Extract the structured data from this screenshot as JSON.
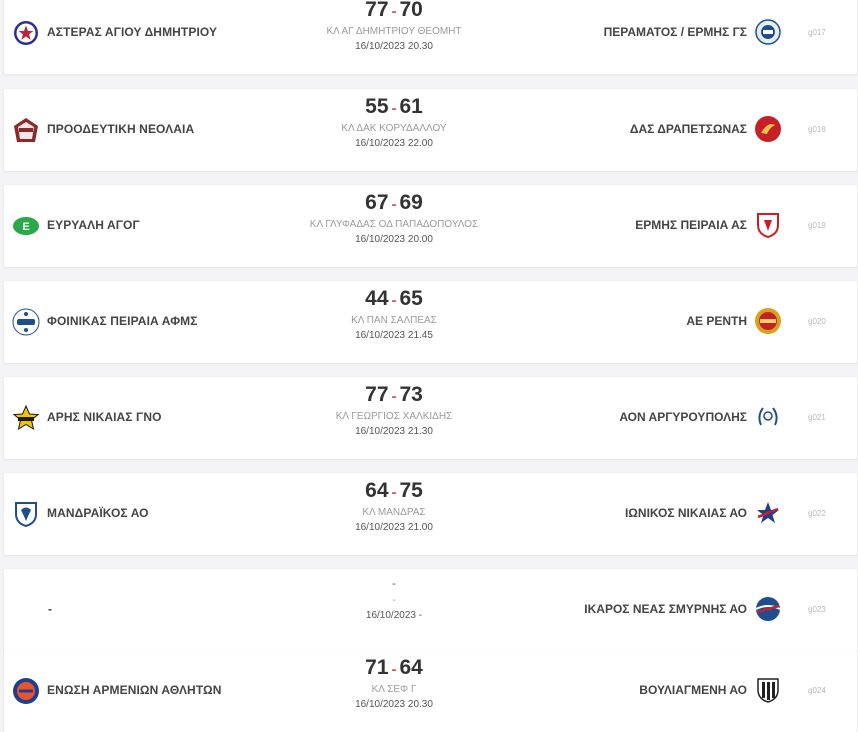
{
  "matches": [
    {
      "home": "ΑΣΤΕΡΑΣ ΑΓΙΟΥ ΔΗΜΗΤΡΙΟΥ",
      "home_score": "77",
      "separator": "-",
      "away_score": "70",
      "venue": "ΚΛ ΑΓ ΔΗΜΗΤΡΙΟΥ ΘΕΟΜΗΤ",
      "datetime": "16/10/2023 20.30",
      "away": "ΠΕΡΑΜΑΤΟΣ / ΕΡΜΗΣ ΓΣ",
      "code": "g017"
    },
    {
      "home": "ΠΡΟΟΔΕΥΤΙΚΗ ΝΕΟΛΑΙΑ",
      "home_score": "55",
      "separator": "-",
      "away_score": "61",
      "venue": "ΚΛ ΔΑΚ ΚΟΡΥΔΑΛΛΟΥ",
      "datetime": "16/10/2023 22.00",
      "away": "ΔΑΣ ΔΡΑΠΕΤΣΩΝΑΣ",
      "code": "g018"
    },
    {
      "home": "ΕΥΡΥΑΛΗ ΑΓΟΓ",
      "home_score": "67",
      "separator": "-",
      "away_score": "69",
      "venue": "ΚΛ ΓΛΥΦΑΔΑΣ ΟΔ ΠΑΠΑΔΟΠΟΥΛΟΣ",
      "datetime": "16/10/2023 20.00",
      "away": "ΕΡΜΗΣ ΠΕΙΡΑΙΑ ΑΣ",
      "code": "g019"
    },
    {
      "home": "ΦΟΙΝΙΚΑΣ ΠΕΙΡΑΙΑ ΑΦΜΣ",
      "home_score": "44",
      "separator": "-",
      "away_score": "65",
      "venue": "ΚΛ ΠΑΝ ΣΑΛΠΕΑΣ",
      "datetime": "16/10/2023 21.45",
      "away": "ΑΕ ΡΕΝΤΗ",
      "code": "g020"
    },
    {
      "home": "ΑΡΗΣ ΝΙΚΑΙΑΣ ΓΝΟ",
      "home_score": "77",
      "separator": "-",
      "away_score": "73",
      "venue": "ΚΛ ΓΕΩΡΓΙΟΣ ΧΑΛΚΙΔΗΣ",
      "datetime": "16/10/2023 21.30",
      "away": "ΑΟΝ ΑΡΓΥΡΟΥΠΟΛΗΣ",
      "code": "g021"
    },
    {
      "home": "ΜΑΝΔΡΑΪΚΟΣ ΑΟ",
      "home_score": "64",
      "separator": "-",
      "away_score": "75",
      "venue": "ΚΛ ΜΑΝΔΡΑΣ",
      "datetime": "16/10/2023 21.00",
      "away": "ΙΩΝΙΚΟΣ ΝΙΚΑΙΑΣ ΑΟ",
      "code": "g022"
    },
    {
      "home": "-",
      "score_text": "-",
      "venue": "-",
      "datetime": "16/10/2023 -",
      "away": "ΙΚΑΡΟΣ ΝΕΑΣ ΣΜΥΡΝΗΣ ΑΟ",
      "code": "g023"
    },
    {
      "home": "ΕΝΩΣΗ ΑΡΜΕΝΙΩΝ ΑΘΛΗΤΩΝ",
      "home_score": "71",
      "separator": "-",
      "away_score": "64",
      "venue": "ΚΛ ΣΕΦ Γ",
      "datetime": "16/10/2023 20.30",
      "away": "ΒΟΥΛΙΑΓΜΕΝΗ ΑΟ",
      "code": "g024"
    }
  ],
  "colors": {
    "accent_separator": "#d9534f",
    "text_dark": "#333333",
    "venue_gray": "#9a9a9a"
  },
  "icons": {
    "home": [
      "asteras-star-crest-icon",
      "proodeftiki-crest-icon",
      "evryali-crest-icon",
      "foinikas-1949-crest-icon",
      "aris-nikaias-star-crest-icon",
      "mandraikos-shield-icon",
      "",
      "enosi-armenion-crest-icon"
    ],
    "away": [
      "peramatos-ermis-crest-icon",
      "das-drapetsonas-crest-icon",
      "ermis-peiraia-shield-icon",
      "ae-rentis-crest-icon",
      "aon-argyroupolis-wreath-icon",
      "ionikos-star-crest-icon",
      "ikaros-smyrnis-ball-icon",
      "vouliagmeni-shield-icon"
    ]
  }
}
